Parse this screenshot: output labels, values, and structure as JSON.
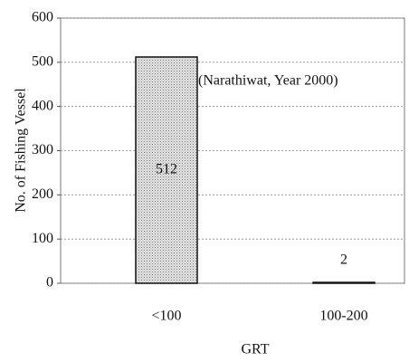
{
  "chart_data": {
    "type": "bar",
    "categories": [
      "<100",
      "100-200"
    ],
    "values": [
      512,
      2
    ],
    "color": "#d9d9d9",
    "ylim": [
      0,
      600
    ],
    "yticks": [
      0,
      100,
      200,
      300,
      400,
      500,
      600
    ],
    "grid": true,
    "ylabel": "No. of Fishing Vessel",
    "xlabel": "GRT",
    "annotation": "(Narathiwat, Year 2000)"
  }
}
